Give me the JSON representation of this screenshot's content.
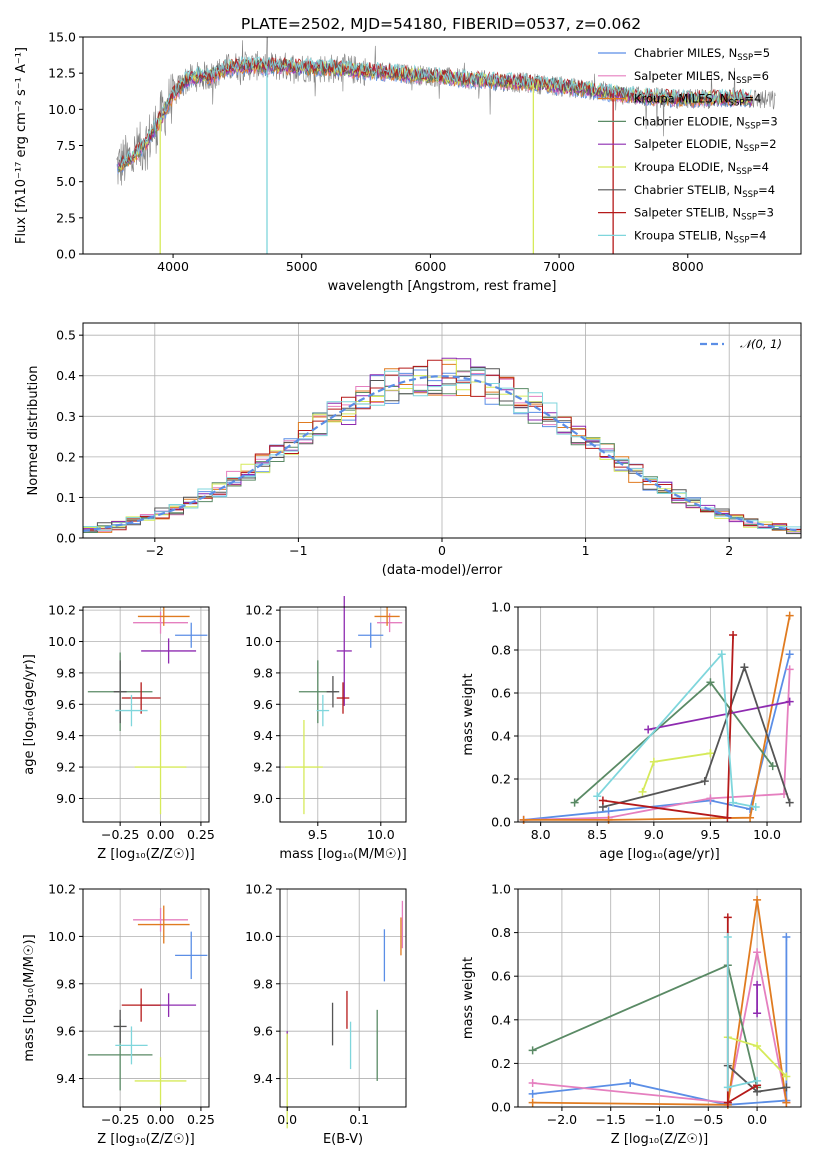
{
  "figure": {
    "title": "PLATE=2502, MJD=54180, FIBERID=0537, z=0.062"
  },
  "colors": {
    "Chabrier MILES": "#5b8ee6",
    "Salpeter MILES": "#e57fbf",
    "Kroupa MILES": "#e07b20",
    "Chabrier ELODIE": "#5a8a65",
    "Salpeter ELODIE": "#8e2bb0",
    "Kroupa ELODIE": "#d6ea5a",
    "Chabrier STELIB": "#555555",
    "Salpeter STELIB": "#b51a1a",
    "Kroupa STELIB": "#7fd6dc",
    "spectrum": "#808080",
    "gaussian": "#5b8ee6"
  },
  "chart_data": [
    {
      "id": "spectrum",
      "type": "line",
      "title": "PLATE=2502, MJD=54180, FIBERID=0537, z=0.062",
      "xlabel": "wavelength [Angstrom, rest frame]",
      "ylabel": "Flux [fλ10⁻¹⁷ erg cm⁻² s⁻¹ A⁻¹]",
      "xlim": [
        3300,
        8880
      ],
      "ylim": [
        0,
        15
      ],
      "xticks": [
        "4000",
        "5000",
        "6000",
        "7000",
        "8000"
      ],
      "yticks": [
        "0.0",
        "2.5",
        "5.0",
        "7.5",
        "10.0",
        "12.5",
        "15.0"
      ],
      "legend": "top-right",
      "legend_entries": [
        {
          "label": "Chabrier MILES, N",
          "sub": "SSP",
          "value": "=5"
        },
        {
          "label": "Salpeter MILES, N",
          "sub": "SSP",
          "value": "=6"
        },
        {
          "label": "Kroupa MILES, N",
          "sub": "SSP",
          "value": "=4"
        },
        {
          "label": "Chabrier ELODIE, N",
          "sub": "SSP",
          "value": "=3"
        },
        {
          "label": "Salpeter ELODIE, N",
          "sub": "SSP",
          "value": "=2"
        },
        {
          "label": "Kroupa ELODIE, N",
          "sub": "SSP",
          "value": "=4"
        },
        {
          "label": "Chabrier STELIB, N",
          "sub": "SSP",
          "value": "=4"
        },
        {
          "label": "Salpeter STELIB, N",
          "sub": "SSP",
          "value": "=3"
        },
        {
          "label": "Kroupa STELIB, N",
          "sub": "SSP",
          "value": "=4"
        }
      ],
      "continuum": {
        "x": [
          3560,
          3700,
          3800,
          3900,
          4000,
          4100,
          4200,
          4300,
          4400,
          4500,
          4700,
          5000,
          5300,
          5600,
          6000,
          6400,
          6800,
          7200,
          7600,
          8000,
          8400,
          8800
        ],
        "y": [
          6.0,
          6.8,
          7.8,
          9.3,
          11.0,
          12.0,
          12.3,
          12.3,
          12.8,
          13.0,
          13.0,
          12.9,
          12.8,
          12.6,
          12.3,
          12.0,
          11.8,
          11.4,
          10.9,
          10.7,
          10.8,
          10.5
        ]
      },
      "drops": [
        {
          "x": 3900,
          "series": "Kroupa ELODIE"
        },
        {
          "x": 4730,
          "series": "Kroupa STELIB"
        },
        {
          "x": 6800,
          "series": "Kroupa ELODIE"
        },
        {
          "x": 7420,
          "series": "Salpeter STELIB"
        }
      ]
    },
    {
      "id": "residuals",
      "type": "line",
      "xlabel": "(data-model)/error",
      "ylabel": "Normed distribution",
      "xlim": [
        -2.5,
        2.5
      ],
      "ylim": [
        0,
        0.53
      ],
      "xticks": [
        "−2",
        "−1",
        "0",
        "1",
        "2"
      ],
      "yticks": [
        "0.0",
        "0.1",
        "0.2",
        "0.3",
        "0.4",
        "0.5"
      ],
      "legend": "top-right",
      "legend_label": "𝒩(0, 1)",
      "gaussian": {
        "mu": 0,
        "sigma": 1
      }
    },
    {
      "id": "age-vs-Z",
      "type": "scatter",
      "xlabel": "Z [log₁₀(Z/Z☉)]",
      "ylabel": "age  [log₁₀(age/yr)]",
      "xlim": [
        -0.48,
        0.3
      ],
      "ylim": [
        8.85,
        10.22
      ],
      "xticks": [
        "−0.25",
        "0.00",
        "0.25"
      ],
      "yticks": [
        "9.0",
        "9.2",
        "9.4",
        "9.6",
        "9.8",
        "10.0",
        "10.2"
      ],
      "points": [
        {
          "series": "Chabrier MILES",
          "x": 0.19,
          "y": 10.04,
          "xerr": 0.1,
          "yerr": 0.08
        },
        {
          "series": "Salpeter MILES",
          "x": 0.0,
          "y": 10.12,
          "xerr": 0.17,
          "yerr": 0.07
        },
        {
          "series": "Kroupa MILES",
          "x": 0.02,
          "y": 10.16,
          "xerr": 0.16,
          "yerr": 0.06
        },
        {
          "series": "Chabrier ELODIE",
          "x": -0.25,
          "y": 9.68,
          "xerr": 0.2,
          "yerr": 0.25
        },
        {
          "series": "Salpeter ELODIE",
          "x": 0.05,
          "y": 9.94,
          "xerr": 0.17,
          "yerr": 0.08
        },
        {
          "series": "Kroupa ELODIE",
          "x": 0.0,
          "y": 9.2,
          "xerr": 0.16,
          "yerr": 0.3
        },
        {
          "series": "Chabrier STELIB",
          "x": -0.25,
          "y": 9.68,
          "xerr": 0.04,
          "yerr": 0.2
        },
        {
          "series": "Salpeter STELIB",
          "x": -0.12,
          "y": 9.64,
          "xerr": 0.12,
          "yerr": 0.1
        },
        {
          "series": "Kroupa STELIB",
          "x": -0.18,
          "y": 9.56,
          "xerr": 0.1,
          "yerr": 0.1
        }
      ]
    },
    {
      "id": "age-vs-mass",
      "type": "scatter",
      "xlabel": "mass [log₁₀(M/M☉)]",
      "ylabel": "",
      "xlim": [
        9.2,
        10.2
      ],
      "ylim": [
        8.85,
        10.22
      ],
      "xticks": [
        "9.5",
        "10.0"
      ],
      "yticks": [
        "9.0",
        "9.2",
        "9.4",
        "9.6",
        "9.8",
        "10.0",
        "10.2"
      ],
      "points": [
        {
          "series": "Chabrier MILES",
          "x": 9.92,
          "y": 10.04,
          "xerr": 0.1,
          "yerr": 0.08
        },
        {
          "series": "Salpeter MILES",
          "x": 10.07,
          "y": 10.12,
          "xerr": 0.1,
          "yerr": 0.06
        },
        {
          "series": "Kroupa MILES",
          "x": 10.05,
          "y": 10.16,
          "xerr": 0.1,
          "yerr": 0.06
        },
        {
          "series": "Chabrier ELODIE",
          "x": 9.5,
          "y": 9.68,
          "xerr": 0.15,
          "yerr": 0.2
        },
        {
          "series": "Salpeter ELODIE",
          "x": 9.71,
          "y": 9.94,
          "xerr": 0.06,
          "yerr": 0.35
        },
        {
          "series": "Kroupa ELODIE",
          "x": 9.39,
          "y": 9.2,
          "xerr": 0.15,
          "yerr": 0.3
        },
        {
          "series": "Chabrier STELIB",
          "x": 9.62,
          "y": 9.68,
          "xerr": 0.05,
          "yerr": 0.1
        },
        {
          "series": "Salpeter STELIB",
          "x": 9.7,
          "y": 9.64,
          "xerr": 0.05,
          "yerr": 0.1
        },
        {
          "series": "Kroupa STELIB",
          "x": 9.54,
          "y": 9.56,
          "xerr": 0.05,
          "yerr": 0.1
        }
      ]
    },
    {
      "id": "weight-vs-age",
      "type": "line",
      "xlabel": "age  [log₁₀(age/yr)]",
      "ylabel": "mass weight",
      "xlim": [
        7.8,
        10.3
      ],
      "ylim": [
        0,
        1.0
      ],
      "xticks": [
        "8.0",
        "8.5",
        "9.0",
        "9.5",
        "10.0"
      ],
      "yticks": [
        "0.0",
        "0.2",
        "0.4",
        "0.6",
        "0.8",
        "1.0"
      ],
      "series": [
        {
          "name": "Chabrier MILES",
          "x": [
            7.85,
            8.6,
            9.5,
            9.85,
            10.2
          ],
          "y": [
            0.01,
            0.05,
            0.1,
            0.06,
            0.78
          ]
        },
        {
          "name": "Salpeter MILES",
          "x": [
            7.85,
            8.6,
            9.5,
            10.15,
            10.2
          ],
          "y": [
            0.01,
            0.02,
            0.11,
            0.13,
            0.71
          ]
        },
        {
          "name": "Kroupa MILES",
          "x": [
            7.85,
            8.6,
            9.85,
            10.2
          ],
          "y": [
            0.01,
            0.01,
            0.02,
            0.96
          ]
        },
        {
          "name": "Chabrier ELODIE",
          "x": [
            8.3,
            9.5,
            10.05
          ],
          "y": [
            0.09,
            0.65,
            0.26
          ]
        },
        {
          "name": "Salpeter ELODIE",
          "x": [
            8.95,
            10.2
          ],
          "y": [
            0.43,
            0.56
          ]
        },
        {
          "name": "Kroupa ELODIE",
          "x": [
            8.9,
            9.0,
            9.5,
            9.5
          ],
          "y": [
            0.14,
            0.28,
            0.32,
            0.32
          ]
        },
        {
          "name": "Chabrier STELIB",
          "x": [
            8.55,
            9.45,
            9.8,
            10.2
          ],
          "y": [
            0.07,
            0.19,
            0.72,
            0.09
          ]
        },
        {
          "name": "Salpeter STELIB",
          "x": [
            8.55,
            9.65,
            9.7
          ],
          "y": [
            0.1,
            0.02,
            0.87
          ]
        },
        {
          "name": "Kroupa STELIB",
          "x": [
            8.5,
            9.6,
            9.7,
            9.9
          ],
          "y": [
            0.12,
            0.78,
            0.09,
            0.07
          ]
        }
      ]
    },
    {
      "id": "mass-vs-Z",
      "type": "scatter",
      "xlabel": "Z [log₁₀(Z/Z☉)]",
      "ylabel": "mass [log₁₀(M/M☉)]",
      "xlim": [
        -0.48,
        0.3
      ],
      "ylim": [
        9.28,
        10.2
      ],
      "xticks": [
        "−0.25",
        "0.00",
        "0.25"
      ],
      "yticks": [
        "9.4",
        "9.6",
        "9.8",
        "10.0",
        "10.2"
      ],
      "points": [
        {
          "series": "Chabrier MILES",
          "x": 0.19,
          "y": 9.92,
          "xerr": 0.1,
          "yerr": 0.1
        },
        {
          "series": "Salpeter MILES",
          "x": 0.0,
          "y": 10.07,
          "xerr": 0.17,
          "yerr": 0.05
        },
        {
          "series": "Kroupa MILES",
          "x": 0.02,
          "y": 10.05,
          "xerr": 0.16,
          "yerr": 0.08
        },
        {
          "series": "Chabrier ELODIE",
          "x": -0.25,
          "y": 9.5,
          "xerr": 0.2,
          "yerr": 0.15
        },
        {
          "series": "Salpeter ELODIE",
          "x": 0.05,
          "y": 9.71,
          "xerr": 0.17,
          "yerr": 0.05
        },
        {
          "series": "Kroupa ELODIE",
          "x": 0.0,
          "y": 9.39,
          "xerr": 0.16,
          "yerr": 0.1
        },
        {
          "series": "Chabrier STELIB",
          "x": -0.25,
          "y": 9.62,
          "xerr": 0.04,
          "yerr": 0.07
        },
        {
          "series": "Salpeter STELIB",
          "x": -0.12,
          "y": 9.71,
          "xerr": 0.12,
          "yerr": 0.07
        },
        {
          "series": "Kroupa STELIB",
          "x": -0.18,
          "y": 9.54,
          "xerr": 0.1,
          "yerr": 0.08
        }
      ]
    },
    {
      "id": "mass-vs-ebv",
      "type": "scatter",
      "xlabel": "E(B-V)",
      "ylabel": "",
      "xlim": [
        -0.01,
        0.165
      ],
      "ylim": [
        9.28,
        10.2
      ],
      "xticks": [
        "0.0",
        "0.1"
      ],
      "yticks": [
        "9.4",
        "9.6",
        "9.8",
        "10.0",
        "10.2"
      ],
      "points": [
        {
          "series": "Chabrier MILES",
          "x": 0.135,
          "y": 9.92,
          "xerr": 0,
          "yerr": 0.11
        },
        {
          "series": "Salpeter MILES",
          "x": 0.16,
          "y": 10.05,
          "xerr": 0,
          "yerr": 0.1
        },
        {
          "series": "Kroupa MILES",
          "x": 0.158,
          "y": 10.0,
          "xerr": 0,
          "yerr": 0.08
        },
        {
          "series": "Chabrier ELODIE",
          "x": 0.125,
          "y": 9.54,
          "xerr": 0,
          "yerr": 0.15
        },
        {
          "series": "Salpeter ELODIE",
          "x": 0.0,
          "y": 9.5,
          "xerr": 0,
          "yerr": 0.1
        },
        {
          "series": "Kroupa ELODIE",
          "x": 0.0,
          "y": 9.39,
          "xerr": 0,
          "yerr": 0.2
        },
        {
          "series": "Chabrier STELIB",
          "x": 0.063,
          "y": 9.63,
          "xerr": 0,
          "yerr": 0.09
        },
        {
          "series": "Salpeter STELIB",
          "x": 0.083,
          "y": 9.69,
          "xerr": 0,
          "yerr": 0.08
        },
        {
          "series": "Kroupa STELIB",
          "x": 0.088,
          "y": 9.54,
          "xerr": 0,
          "yerr": 0.1
        }
      ]
    },
    {
      "id": "weight-vs-Z",
      "type": "line",
      "xlabel": "Z [log₁₀(Z/Z☉)]",
      "ylabel": "mass weight",
      "xlim": [
        -2.45,
        0.45
      ],
      "ylim": [
        0,
        1.0
      ],
      "xticks": [
        "−2.0",
        "−1.5",
        "−1.0",
        "−0.5",
        "0.0"
      ],
      "yticks": [
        "0.0",
        "0.2",
        "0.4",
        "0.6",
        "0.8",
        "1.0"
      ],
      "series": [
        {
          "name": "Chabrier MILES",
          "x": [
            -2.3,
            -1.3,
            -0.3,
            0.3,
            0.3
          ],
          "y": [
            0.06,
            0.11,
            0.01,
            0.03,
            0.78
          ]
        },
        {
          "name": "Salpeter MILES",
          "x": [
            -2.3,
            -0.3,
            0.0,
            0.3
          ],
          "y": [
            0.11,
            0.02,
            0.71,
            0.02
          ]
        },
        {
          "name": "Kroupa MILES",
          "x": [
            -2.3,
            -0.3,
            0.0,
            0.3
          ],
          "y": [
            0.02,
            0.01,
            0.95,
            0.02
          ]
        },
        {
          "name": "Chabrier ELODIE",
          "x": [
            -2.3,
            -0.3,
            0.0
          ],
          "y": [
            0.26,
            0.65,
            0.09
          ]
        },
        {
          "name": "Salpeter ELODIE",
          "x": [
            0.0,
            0.0
          ],
          "y": [
            0.43,
            0.56
          ]
        },
        {
          "name": "Kroupa ELODIE",
          "x": [
            -0.3,
            0.0,
            0.3
          ],
          "y": [
            0.32,
            0.28,
            0.14
          ]
        },
        {
          "name": "Chabrier STELIB",
          "x": [
            -0.3,
            0.0,
            0.3
          ],
          "y": [
            0.19,
            0.07,
            0.09
          ]
        },
        {
          "name": "Salpeter STELIB",
          "x": [
            -0.3,
            -0.3,
            0.0
          ],
          "y": [
            0.87,
            0.02,
            0.1
          ]
        },
        {
          "name": "Kroupa STELIB",
          "x": [
            -0.3,
            -0.3,
            0.0
          ],
          "y": [
            0.78,
            0.09,
            0.12
          ]
        }
      ]
    }
  ]
}
